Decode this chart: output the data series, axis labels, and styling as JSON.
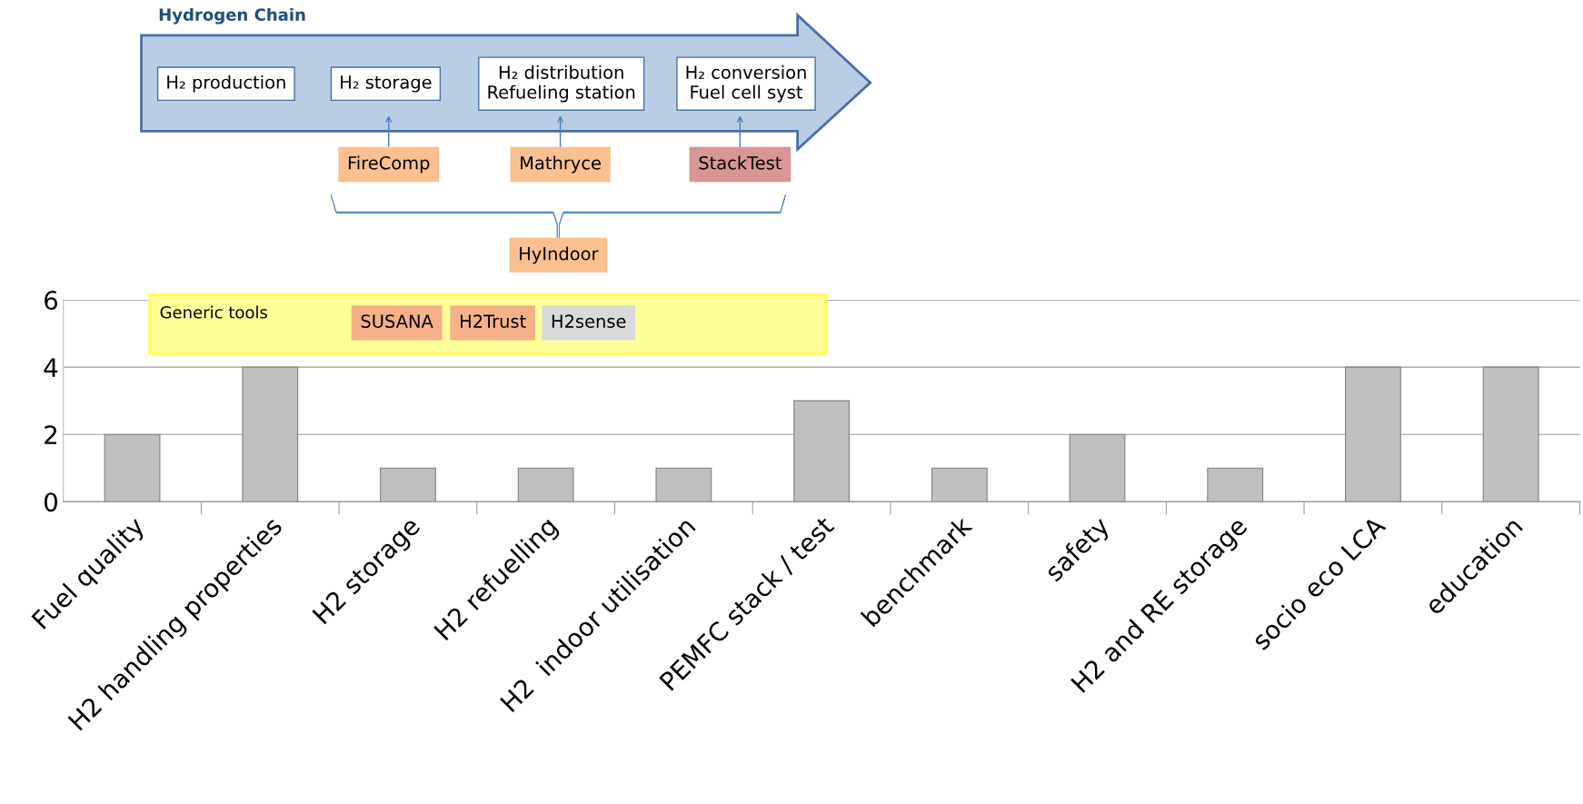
{
  "chart_data": {
    "type": "bar",
    "categories": [
      "Fuel quality",
      "H2 handling properties",
      "H2 storage",
      "H2 refuelling",
      "H2  indoor utilisation",
      "PEMFC stack / test",
      "benchmark",
      "safety",
      "H2 and RE storage",
      "socio eco LCA",
      "education"
    ],
    "values": [
      2,
      4,
      1,
      1,
      1,
      3,
      1,
      2,
      1,
      4,
      4
    ],
    "color": "#bfbfbf",
    "ylim": [
      0,
      6
    ],
    "yticks": [
      0,
      2,
      4,
      6
    ],
    "grid": "y",
    "annotations": [
      "Hydrogen Chain",
      "H₂ production",
      "H₂ storage",
      "H₂ distribution\nRefueling station",
      "H₂ conversion\nFuel cell syst",
      "FireComp",
      "Mathryce",
      "StackTest",
      "HyIndoor",
      "Generic tools",
      "SUSANA",
      "H2Trust",
      "H2sense"
    ]
  }
}
